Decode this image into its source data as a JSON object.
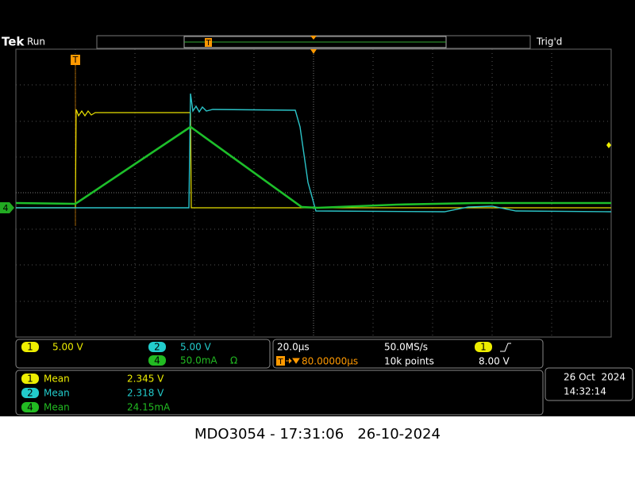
{
  "header": {
    "brand": "Tek",
    "status": "Run",
    "trigger_status": "Trig'd"
  },
  "markers": {
    "trigger": "T",
    "record_trigger": "T",
    "channel4": "4"
  },
  "channels": [
    {
      "number": "1",
      "scale": "5.00 V"
    },
    {
      "number": "2",
      "scale": "5.00 V"
    },
    {
      "number": "4",
      "scale": "50.0mA",
      "unit_symbol": "Ω"
    }
  ],
  "timebase": {
    "horizontal_scale": "20.0µs",
    "sample_rate": "50.0MS/s",
    "trigger_marker": "T",
    "delay": "80.00000µs",
    "record_length": "10k points"
  },
  "trigger": {
    "source": "1",
    "level": "8.00 V"
  },
  "measurements": [
    {
      "channel": "1",
      "label": "Mean",
      "value": "2.345 V"
    },
    {
      "channel": "2",
      "label": "Mean",
      "value": "2.318 V"
    },
    {
      "channel": "4",
      "label": "Mean",
      "value": "24.15mA"
    }
  ],
  "datetime": {
    "date": "26 Oct  2024",
    "time": "14:32:14"
  },
  "caption": "MDO3054 - 17:31:06   26-10-2024"
}
